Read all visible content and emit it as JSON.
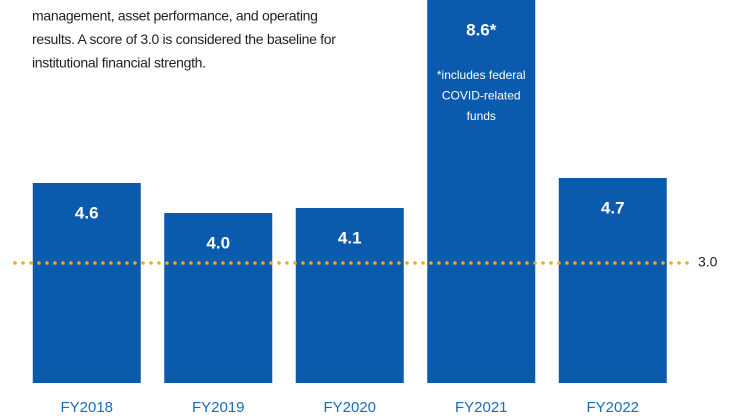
{
  "chart_data": {
    "type": "bar",
    "intro_lines": [
      "management, asset performance, and operating",
      "results. A score of 3.0 is considered the baseline for",
      "institutional financial strength."
    ],
    "categories": [
      "FY2018",
      "FY2019",
      "FY2020",
      "FY2021",
      "FY2022"
    ],
    "values": [
      4.6,
      4.0,
      4.1,
      8.6,
      4.7
    ],
    "value_labels": [
      "4.6",
      "4.0",
      "4.1",
      "8.6*",
      "4.7"
    ],
    "color": "#0a5aad",
    "ylim": [
      0.6,
      8.6
    ],
    "reference_line": {
      "value": 3,
      "label": "3.0",
      "color": "#f5a623"
    },
    "annotation": {
      "category_index": 3,
      "lines": [
        "*includes federal",
        "COVID-related",
        "funds"
      ]
    }
  }
}
